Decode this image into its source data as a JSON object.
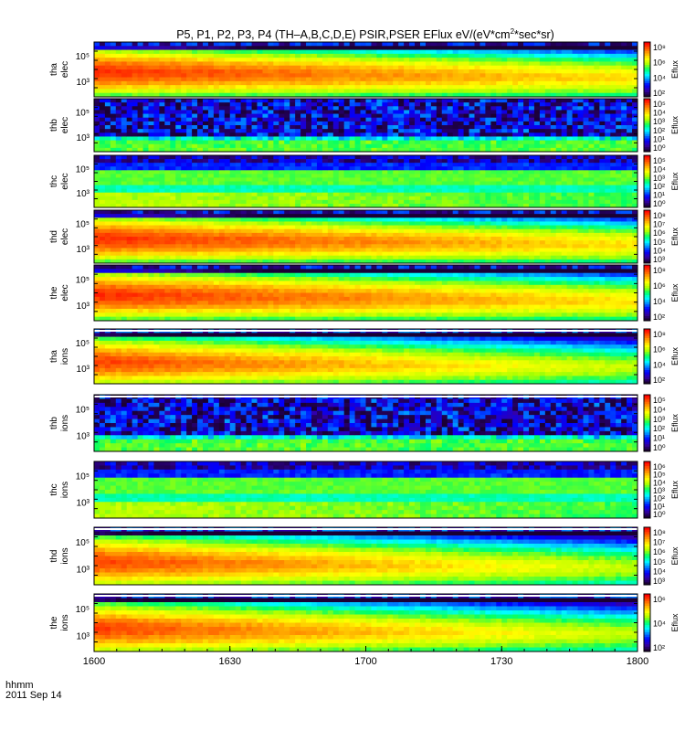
{
  "title": {
    "prefix": "P5, P1, P2, P3, P4  (TH–A,B,C,D,E)  PSIR,PSER  EFlux  eV/(eV*cm",
    "sup": "2",
    "suffix": "*sec*sr)"
  },
  "footer": {
    "time_label": "hhmm",
    "date_label": "2011 Sep 14"
  },
  "colormap": [
    "#1a0033",
    "#3300aa",
    "#0000ff",
    "#0088ff",
    "#00ffff",
    "#00ff66",
    "#aaff00",
    "#ffff00",
    "#ffaa00",
    "#ff5500",
    "#ff0000"
  ],
  "chart_data": {
    "type": "heatmap",
    "x_axis": {
      "start": "1600",
      "end": "1800",
      "tick_labels": [
        "1600",
        "1630",
        "1700",
        "1730",
        "1800"
      ]
    },
    "colorbar_label": "Eflux",
    "panels": [
      {
        "label": "tha elec",
        "kind": "elec",
        "y_ticks": [
          "10⁵",
          "10³"
        ],
        "colorbar_ticks": [
          "10⁸",
          "10⁶",
          "10⁴",
          "10²"
        ]
      },
      {
        "label": "thb elec",
        "kind": "noise",
        "y_ticks": [
          "10⁵",
          "10³"
        ],
        "colorbar_ticks": [
          "10⁵",
          "10⁴",
          "10³",
          "10²",
          "10¹",
          "10⁰"
        ]
      },
      {
        "label": "thc elec",
        "kind": "thc",
        "y_ticks": [
          "10⁵",
          "10³"
        ],
        "colorbar_ticks": [
          "10⁵",
          "10⁴",
          "10³",
          "10²",
          "10¹",
          "10⁰"
        ]
      },
      {
        "label": "thd elec",
        "kind": "elec",
        "y_ticks": [
          "10⁵",
          "10³"
        ],
        "colorbar_ticks": [
          "10⁸",
          "10⁷",
          "10⁶",
          "10⁵",
          "10⁴",
          "10³"
        ]
      },
      {
        "label": "the elec",
        "kind": "elec",
        "y_ticks": [
          "10⁵",
          "10³"
        ],
        "colorbar_ticks": [
          "10⁸",
          "10⁶",
          "10⁴",
          "10²"
        ]
      },
      {
        "label": "tha ions",
        "kind": "ion",
        "y_ticks": [
          "10⁵",
          "10³"
        ],
        "colorbar_ticks": [
          "10⁸",
          "10⁶",
          "10⁴",
          "10²"
        ]
      },
      {
        "label": "thb ions",
        "kind": "noise",
        "y_ticks": [
          "10⁵",
          "10³"
        ],
        "colorbar_ticks": [
          "10⁵",
          "10⁴",
          "10³",
          "10²",
          "10¹",
          "10⁰"
        ]
      },
      {
        "label": "thc ions",
        "kind": "thc",
        "y_ticks": [
          "10⁵",
          "10³"
        ],
        "colorbar_ticks": [
          "10⁶",
          "10⁵",
          "10⁴",
          "10³",
          "10²",
          "10¹",
          "10⁰"
        ]
      },
      {
        "label": "thd ions",
        "kind": "ion",
        "y_ticks": [
          "10⁵",
          "10³"
        ],
        "colorbar_ticks": [
          "10⁸",
          "10⁷",
          "10⁶",
          "10⁵",
          "10⁴",
          "10³"
        ]
      },
      {
        "label": "the ions",
        "kind": "ion",
        "y_ticks": [
          "10⁵",
          "10³"
        ],
        "colorbar_ticks": [
          "10⁶",
          "10⁴",
          "10²"
        ]
      }
    ]
  }
}
